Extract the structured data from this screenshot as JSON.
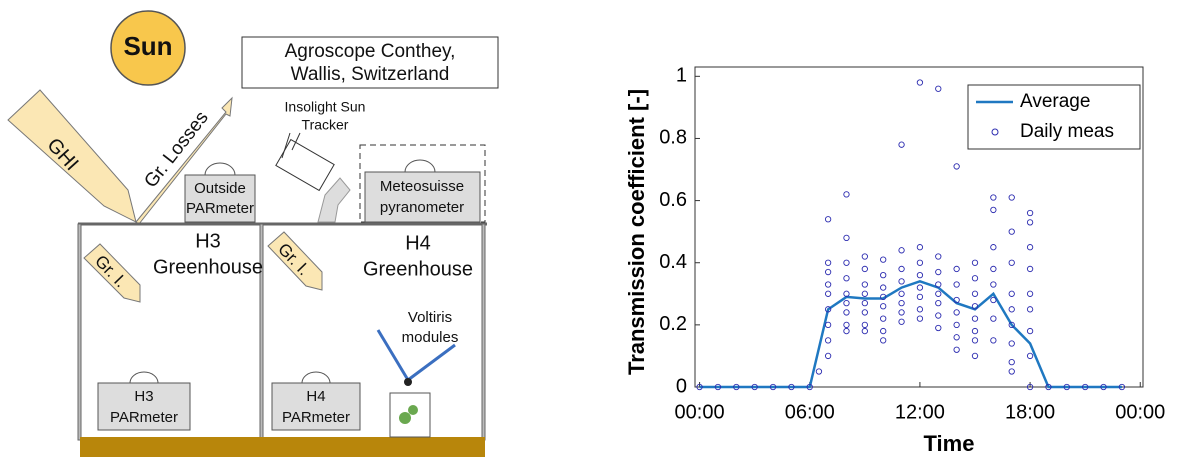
{
  "diagram": {
    "sun": "Sun",
    "location": [
      "Agroscope Conthey,",
      "Wallis, Switzerland"
    ],
    "ghi": "GHI",
    "losses": "Gr. Losses",
    "tracker": [
      "Insolight Sun",
      "Tracker"
    ],
    "outside": [
      "Outside",
      "PARmeter"
    ],
    "pyranometer": [
      "Meteosuisse",
      "pyranometer"
    ],
    "h3": [
      "H3",
      "Greenhouse"
    ],
    "h4": [
      "H4",
      "Greenhouse"
    ],
    "gr_i_h3": "Gr. I.",
    "gr_i_h4": "Gr. I.",
    "voltiris": [
      "Voltiris",
      "modules"
    ],
    "h3_par": [
      "H3",
      "PARmeter"
    ],
    "h4_par": [
      "H4",
      "PARmeter"
    ]
  },
  "chart_data": {
    "type": "line",
    "xlabel": "Time",
    "ylabel": "Transmission coefficient [-]",
    "xlim": [
      -0.25,
      24.15
    ],
    "ylim": [
      0,
      1.03
    ],
    "xticks": [
      {
        "value": 0,
        "label": "00:00"
      },
      {
        "value": 6,
        "label": "06:00"
      },
      {
        "value": 12,
        "label": "12:00"
      },
      {
        "value": 18,
        "label": "18:00"
      },
      {
        "value": 24,
        "label": "00:00"
      }
    ],
    "yticks": [
      0,
      0.2,
      0.4,
      0.6,
      0.8,
      1
    ],
    "legend": "top-right",
    "series": [
      {
        "name": "Average",
        "mode": "line",
        "color": "#1f78c1",
        "x": [
          0,
          1,
          2,
          3,
          4,
          5,
          6,
          7,
          8,
          9,
          10,
          11,
          12,
          13,
          14,
          15,
          16,
          17,
          18,
          19,
          20,
          21,
          22,
          23
        ],
        "values": [
          0,
          0,
          0,
          0,
          0,
          0,
          0,
          0.25,
          0.29,
          0.285,
          0.285,
          0.32,
          0.34,
          0.32,
          0.27,
          0.25,
          0.3,
          0.2,
          0.14,
          0,
          0,
          0,
          0,
          0
        ]
      },
      {
        "name": "Daily meas",
        "mode": "markers",
        "color": "#2c2cb0",
        "x": [
          0,
          1,
          2,
          3,
          4,
          5,
          6,
          6.5,
          7,
          7,
          7,
          7,
          7,
          7,
          7,
          7,
          7,
          8,
          8,
          8,
          8,
          8,
          8,
          8,
          8,
          8,
          9,
          9,
          9,
          9,
          9,
          9,
          9,
          9,
          10,
          10,
          10,
          10,
          10,
          10,
          10,
          10,
          11,
          11,
          11,
          11,
          11,
          11,
          11,
          11,
          12,
          12,
          12,
          12,
          12,
          12,
          12,
          12,
          13,
          13,
          13,
          13,
          13,
          13,
          13,
          13,
          14,
          14,
          14,
          14,
          14,
          14,
          14,
          14,
          15,
          15,
          15,
          15,
          15,
          15,
          15,
          15,
          16,
          16,
          16,
          16,
          16,
          16,
          16,
          16,
          17,
          17,
          17,
          17,
          17,
          17,
          17,
          17,
          17,
          18,
          18,
          18,
          18,
          18,
          18,
          18,
          18,
          18,
          19,
          20,
          21,
          22,
          23
        ],
        "values": [
          0,
          0,
          0,
          0,
          0,
          0,
          0,
          0.05,
          0.54,
          0.4,
          0.37,
          0.33,
          0.3,
          0.25,
          0.2,
          0.15,
          0.1,
          0.62,
          0.48,
          0.4,
          0.35,
          0.3,
          0.27,
          0.24,
          0.2,
          0.18,
          0.42,
          0.38,
          0.33,
          0.3,
          0.27,
          0.24,
          0.2,
          0.18,
          0.41,
          0.36,
          0.32,
          0.29,
          0.26,
          0.22,
          0.18,
          0.15,
          0.78,
          0.44,
          0.38,
          0.34,
          0.3,
          0.27,
          0.24,
          0.21,
          0.98,
          0.45,
          0.4,
          0.36,
          0.32,
          0.29,
          0.25,
          0.22,
          0.96,
          0.42,
          0.37,
          0.33,
          0.3,
          0.27,
          0.23,
          0.19,
          0.71,
          0.38,
          0.33,
          0.28,
          0.24,
          0.2,
          0.16,
          0.12,
          0.4,
          0.35,
          0.3,
          0.26,
          0.22,
          0.18,
          0.15,
          0.1,
          0.61,
          0.57,
          0.45,
          0.38,
          0.33,
          0.28,
          0.22,
          0.15,
          0.61,
          0.5,
          0.4,
          0.3,
          0.25,
          0.2,
          0.14,
          0.08,
          0.05,
          0.56,
          0.53,
          0.45,
          0.38,
          0.3,
          0.25,
          0.18,
          0.1,
          0,
          0,
          0,
          0,
          0,
          0
        ]
      }
    ]
  }
}
